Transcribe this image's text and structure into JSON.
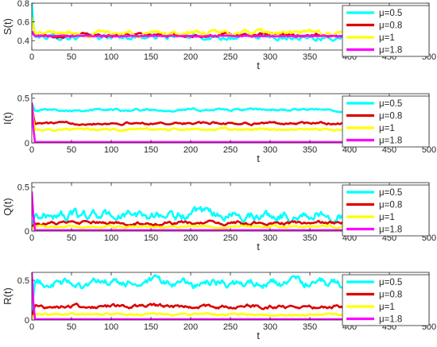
{
  "colors": {
    "mu_0_5": "#00FFFF",
    "mu_0_8": "#DD0000",
    "mu_1": "#FFFF00",
    "mu_1_8": "#FF00FF",
    "axis": "#262626"
  },
  "chart_data": [
    {
      "type": "line",
      "ylabel": "S(t)",
      "xlabel": "t",
      "xlim": [
        0,
        500
      ],
      "ylim": [
        0.3,
        0.8
      ],
      "xticks": [
        "0",
        "50",
        "100",
        "150",
        "200",
        "250",
        "300",
        "350",
        "400",
        "450",
        "500"
      ],
      "yticks": [
        "0.4",
        "0.6",
        "0.8"
      ],
      "legend_position": "right",
      "series": [
        {
          "name": "μ=0.5",
          "start": 0.8,
          "level": 0.44,
          "noise": 0.018
        },
        {
          "name": "μ=0.8",
          "start": 0.5,
          "level": 0.46,
          "noise": 0.012
        },
        {
          "name": "μ=1",
          "start": 0.65,
          "level": 0.48,
          "noise": 0.018
        },
        {
          "name": "μ=1.8",
          "start": 0.5,
          "level": 0.45,
          "noise": 0.003
        }
      ]
    },
    {
      "type": "line",
      "ylabel": "I(t)",
      "xlabel": "t",
      "xlim": [
        0,
        500
      ],
      "ylim": [
        0,
        0.55
      ],
      "xticks": [
        "0",
        "50",
        "100",
        "150",
        "200",
        "250",
        "300",
        "350",
        "400",
        "450",
        "500"
      ],
      "yticks": [
        "0",
        "0.5"
      ],
      "legend_position": "right",
      "series": [
        {
          "name": "μ=0.5",
          "start": 0.45,
          "level": 0.37,
          "noise": 0.008
        },
        {
          "name": "μ=0.8",
          "start": 0.45,
          "level": 0.22,
          "noise": 0.008
        },
        {
          "name": "μ=1",
          "start": 0.45,
          "level": 0.15,
          "noise": 0.008
        },
        {
          "name": "μ=1.8",
          "start": 0.45,
          "level": 0.01,
          "noise": 0.0
        }
      ]
    },
    {
      "type": "line",
      "ylabel": "Q(t)",
      "xlabel": "t",
      "xlim": [
        0,
        500
      ],
      "ylim": [
        0,
        0.55
      ],
      "xticks": [
        "0",
        "50",
        "100",
        "150",
        "200",
        "250",
        "300",
        "350",
        "400",
        "450",
        "500"
      ],
      "yticks": [
        "0",
        "0.5"
      ],
      "legend_position": "right",
      "series": [
        {
          "name": "μ=0.5",
          "start": 0.02,
          "level": 0.18,
          "noise": 0.035
        },
        {
          "name": "μ=0.8",
          "start": 0.02,
          "level": 0.09,
          "noise": 0.012
        },
        {
          "name": "μ=1",
          "start": 0.02,
          "level": 0.05,
          "noise": 0.008
        },
        {
          "name": "μ=1.8",
          "start": 0.45,
          "level": 0.01,
          "noise": 0.0
        }
      ]
    },
    {
      "type": "line",
      "ylabel": "R(t)",
      "xlabel": "t",
      "xlim": [
        0,
        500
      ],
      "ylim": [
        0,
        0.6
      ],
      "xticks": [
        "0",
        "50",
        "100",
        "150",
        "200",
        "250",
        "300",
        "350",
        "400",
        "450",
        "500"
      ],
      "yticks": [
        "0",
        "0.5"
      ],
      "legend_position": "right",
      "series": [
        {
          "name": "μ=0.5",
          "start": 0.02,
          "level": 0.46,
          "noise": 0.035
        },
        {
          "name": "μ=0.8",
          "start": 0.02,
          "level": 0.17,
          "noise": 0.015
        },
        {
          "name": "μ=1",
          "start": 0.02,
          "level": 0.07,
          "noise": 0.008
        },
        {
          "name": "μ=1.8",
          "start": 0.6,
          "level": 0.01,
          "noise": 0.0
        }
      ]
    }
  ]
}
